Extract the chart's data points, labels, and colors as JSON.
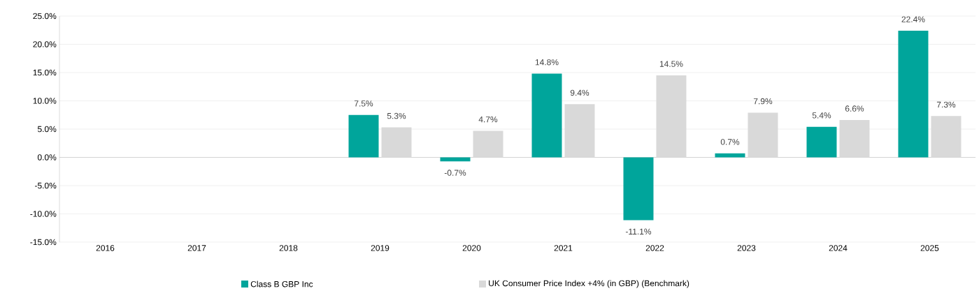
{
  "chart_data": {
    "type": "bar",
    "categories": [
      "2016",
      "2017",
      "2018",
      "2019",
      "2020",
      "2021",
      "2022",
      "2023",
      "2024",
      "2025"
    ],
    "series": [
      {
        "name": "Class B GBP Inc",
        "color": "#00a59b",
        "values": [
          null,
          null,
          null,
          7.5,
          -0.7,
          14.8,
          -11.1,
          0.7,
          5.4,
          22.4
        ],
        "value_labels": [
          null,
          null,
          null,
          "7.5%",
          "-0.7%",
          "14.8%",
          "-11.1%",
          "0.7%",
          "5.4%",
          "22.4%"
        ]
      },
      {
        "name": "UK Consumer Price Index +4% (in GBP) (Benchmark)",
        "color": "#d9d9d9",
        "values": [
          null,
          null,
          null,
          5.3,
          4.7,
          9.4,
          14.5,
          7.9,
          6.6,
          7.3
        ],
        "value_labels": [
          null,
          null,
          null,
          "5.3%",
          "4.7%",
          "9.4%",
          "14.5%",
          "7.9%",
          "6.6%",
          "7.3%"
        ]
      }
    ],
    "ylim": [
      -15,
      25
    ],
    "yticks": [
      {
        "value": -15,
        "label": "-15.0%"
      },
      {
        "value": -10,
        "label": "-10.0%"
      },
      {
        "value": -5,
        "label": "-5.0%"
      },
      {
        "value": 0,
        "label": "0.0%"
      },
      {
        "value": 5,
        "label": "5.0%"
      },
      {
        "value": 10,
        "label": "10.0%"
      },
      {
        "value": 15,
        "label": "15.0%"
      },
      {
        "value": 20,
        "label": "20.0%"
      },
      {
        "value": 25,
        "label": "25.0%"
      }
    ],
    "grid": "y",
    "legend": "bottom"
  }
}
